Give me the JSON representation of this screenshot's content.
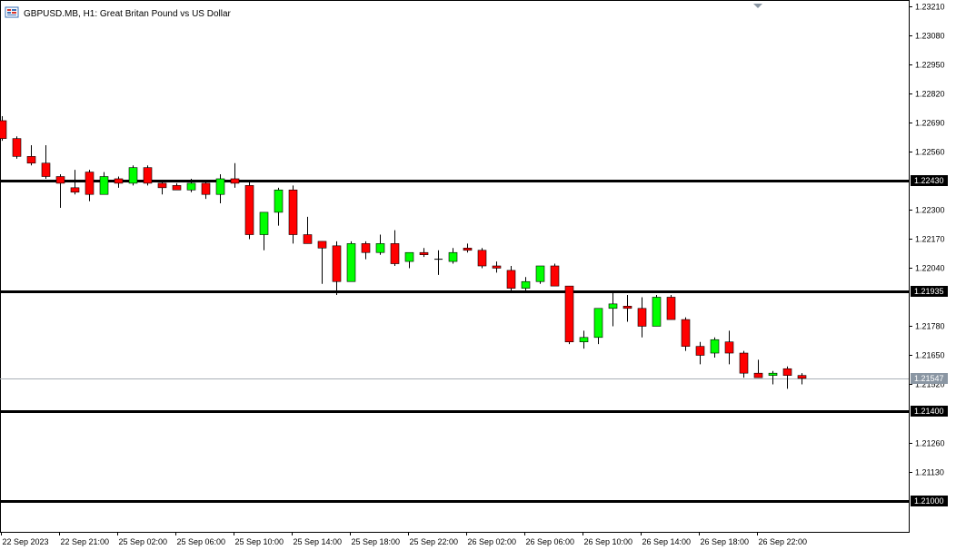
{
  "header": {
    "title": "GBPUSD.MB, H1:  Great Britan Pound vs US Dollar",
    "icon": "chart-window-icon"
  },
  "colors": {
    "bull": "#00ff00",
    "bear": "#ff0000",
    "wick": "#000000",
    "level": "#000000",
    "bid_line": "#aab0b6",
    "bid_tag": "#8a96a3",
    "background": "#ffffff"
  },
  "chart_data": {
    "type": "candlestick",
    "symbol": "GBPUSD.MB",
    "timeframe": "H1",
    "ylim": [
      1.2086,
      1.2324
    ],
    "y_ticks": [
      "1.23210",
      "1.23080",
      "1.22950",
      "1.22820",
      "1.22690",
      "1.22560",
      "1.22300",
      "1.22170",
      "1.22040",
      "1.21780",
      "1.21650",
      "1.21520",
      "1.21260",
      "1.21130"
    ],
    "x_ticks": [
      "22 Sep 2023",
      "22 Sep 21:00",
      "25 Sep 02:00",
      "25 Sep 06:00",
      "25 Sep 10:00",
      "25 Sep 14:00",
      "25 Sep 18:00",
      "25 Sep 22:00",
      "26 Sep 02:00",
      "26 Sep 06:00",
      "26 Sep 10:00",
      "26 Sep 14:00",
      "26 Sep 18:00",
      "26 Sep 22:00"
    ],
    "levels": [
      {
        "price": 1.2243,
        "label": "1.22430"
      },
      {
        "price": 1.21935,
        "label": "1.21935"
      },
      {
        "price": 1.214,
        "label": "1.21400"
      },
      {
        "price": 1.21,
        "label": "1.21000"
      }
    ],
    "bid": {
      "price": 1.21547,
      "label": "1.21547"
    },
    "candles": [
      {
        "o": 1.227,
        "h": 1.2272,
        "l": 1.2261,
        "c": 1.2262
      },
      {
        "o": 1.2262,
        "h": 1.2263,
        "l": 1.2253,
        "c": 1.2254
      },
      {
        "o": 1.2254,
        "h": 1.2259,
        "l": 1.225,
        "c": 1.2251
      },
      {
        "o": 1.2251,
        "h": 1.2259,
        "l": 1.2244,
        "c": 1.2245
      },
      {
        "o": 1.2245,
        "h": 1.2246,
        "l": 1.2231,
        "c": 1.2242
      },
      {
        "o": 1.224,
        "h": 1.2248,
        "l": 1.2237,
        "c": 1.2238
      },
      {
        "o": 1.2247,
        "h": 1.2248,
        "l": 1.2234,
        "c": 1.2237
      },
      {
        "o": 1.2237,
        "h": 1.2247,
        "l": 1.2237,
        "c": 1.2245
      },
      {
        "o": 1.2244,
        "h": 1.2245,
        "l": 1.224,
        "c": 1.2242
      },
      {
        "o": 1.2242,
        "h": 1.225,
        "l": 1.2241,
        "c": 1.2249
      },
      {
        "o": 1.2249,
        "h": 1.225,
        "l": 1.2241,
        "c": 1.2242
      },
      {
        "o": 1.2242,
        "h": 1.2243,
        "l": 1.2237,
        "c": 1.224
      },
      {
        "o": 1.2241,
        "h": 1.2242,
        "l": 1.2239,
        "c": 1.2239
      },
      {
        "o": 1.2239,
        "h": 1.2244,
        "l": 1.2238,
        "c": 1.2242
      },
      {
        "o": 1.2242,
        "h": 1.2243,
        "l": 1.2235,
        "c": 1.2237
      },
      {
        "o": 1.2237,
        "h": 1.2246,
        "l": 1.2233,
        "c": 1.2244
      },
      {
        "o": 1.2244,
        "h": 1.2251,
        "l": 1.224,
        "c": 1.2242
      },
      {
        "o": 1.2241,
        "h": 1.2243,
        "l": 1.2217,
        "c": 1.2219
      },
      {
        "o": 1.2219,
        "h": 1.2229,
        "l": 1.2212,
        "c": 1.2229
      },
      {
        "o": 1.2229,
        "h": 1.224,
        "l": 1.2223,
        "c": 1.2239
      },
      {
        "o": 1.2239,
        "h": 1.2241,
        "l": 1.2215,
        "c": 1.2219
      },
      {
        "o": 1.2219,
        "h": 1.2227,
        "l": 1.2215,
        "c": 1.2215
      },
      {
        "o": 1.2216,
        "h": 1.2216,
        "l": 1.2197,
        "c": 1.2213
      },
      {
        "o": 1.2214,
        "h": 1.2216,
        "l": 1.2192,
        "c": 1.2198
      },
      {
        "o": 1.2198,
        "h": 1.2216,
        "l": 1.2198,
        "c": 1.2215
      },
      {
        "o": 1.2215,
        "h": 1.2216,
        "l": 1.2208,
        "c": 1.2211
      },
      {
        "o": 1.2211,
        "h": 1.2219,
        "l": 1.221,
        "c": 1.2215
      },
      {
        "o": 1.2215,
        "h": 1.2221,
        "l": 1.2205,
        "c": 1.2206
      },
      {
        "o": 1.2207,
        "h": 1.2211,
        "l": 1.2204,
        "c": 1.2211
      },
      {
        "o": 1.2211,
        "h": 1.2213,
        "l": 1.2209,
        "c": 1.221
      },
      {
        "o": 1.2208,
        "h": 1.2212,
        "l": 1.2201,
        "c": 1.2208
      },
      {
        "o": 1.2207,
        "h": 1.2213,
        "l": 1.2206,
        "c": 1.2211
      },
      {
        "o": 1.2213,
        "h": 1.2215,
        "l": 1.2211,
        "c": 1.2212
      },
      {
        "o": 1.2212,
        "h": 1.2213,
        "l": 1.2204,
        "c": 1.2205
      },
      {
        "o": 1.2205,
        "h": 1.2207,
        "l": 1.2202,
        "c": 1.2204
      },
      {
        "o": 1.2203,
        "h": 1.2205,
        "l": 1.2194,
        "c": 1.2195
      },
      {
        "o": 1.2195,
        "h": 1.22,
        "l": 1.2194,
        "c": 1.2198
      },
      {
        "o": 1.2198,
        "h": 1.2205,
        "l": 1.2197,
        "c": 1.2205
      },
      {
        "o": 1.2205,
        "h": 1.2206,
        "l": 1.2196,
        "c": 1.2196
      },
      {
        "o": 1.2196,
        "h": 1.2196,
        "l": 1.217,
        "c": 1.2171
      },
      {
        "o": 1.2171,
        "h": 1.2176,
        "l": 1.2168,
        "c": 1.2173
      },
      {
        "o": 1.2173,
        "h": 1.2186,
        "l": 1.217,
        "c": 1.2186
      },
      {
        "o": 1.2186,
        "h": 1.2193,
        "l": 1.2178,
        "c": 1.2188
      },
      {
        "o": 1.2187,
        "h": 1.2192,
        "l": 1.218,
        "c": 1.2186
      },
      {
        "o": 1.2186,
        "h": 1.2191,
        "l": 1.2173,
        "c": 1.2178
      },
      {
        "o": 1.2178,
        "h": 1.2192,
        "l": 1.2178,
        "c": 1.2191
      },
      {
        "o": 1.2191,
        "h": 1.2192,
        "l": 1.2181,
        "c": 1.2181
      },
      {
        "o": 1.2181,
        "h": 1.2182,
        "l": 1.2167,
        "c": 1.2169
      },
      {
        "o": 1.2169,
        "h": 1.2171,
        "l": 1.2161,
        "c": 1.2165
      },
      {
        "o": 1.2166,
        "h": 1.2173,
        "l": 1.2164,
        "c": 1.2172
      },
      {
        "o": 1.2171,
        "h": 1.2176,
        "l": 1.2161,
        "c": 1.2166
      },
      {
        "o": 1.2166,
        "h": 1.2167,
        "l": 1.2155,
        "c": 1.2157
      },
      {
        "o": 1.2157,
        "h": 1.2163,
        "l": 1.2155,
        "c": 1.2155
      },
      {
        "o": 1.2156,
        "h": 1.2158,
        "l": 1.2152,
        "c": 1.2157
      },
      {
        "o": 1.2159,
        "h": 1.216,
        "l": 1.215,
        "c": 1.2156
      },
      {
        "o": 1.2156,
        "h": 1.2157,
        "l": 1.2152,
        "c": 1.21547
      }
    ]
  }
}
